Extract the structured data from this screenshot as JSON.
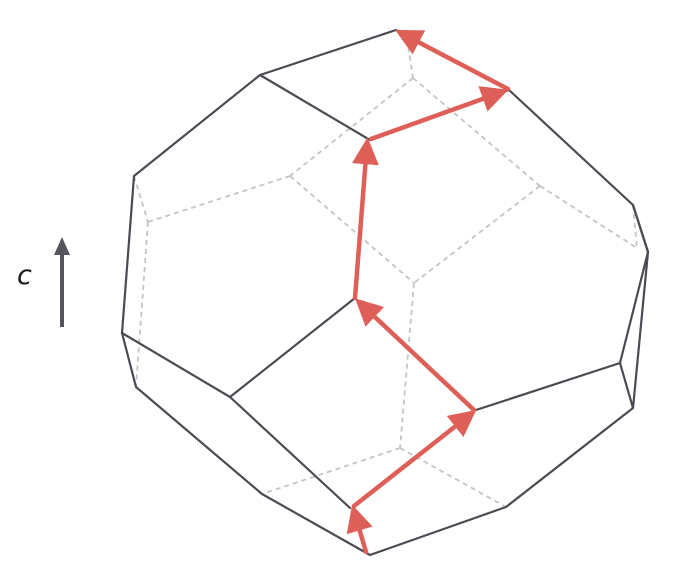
{
  "figure": {
    "axis_label": "c",
    "colors": {
      "visible_edge": "#4a4b53",
      "hidden_edge": "#c4c4c4",
      "path": "#dd5f58",
      "axis_arrow": "#55565d"
    },
    "icons": {
      "axis": "up-arrow-icon"
    }
  }
}
